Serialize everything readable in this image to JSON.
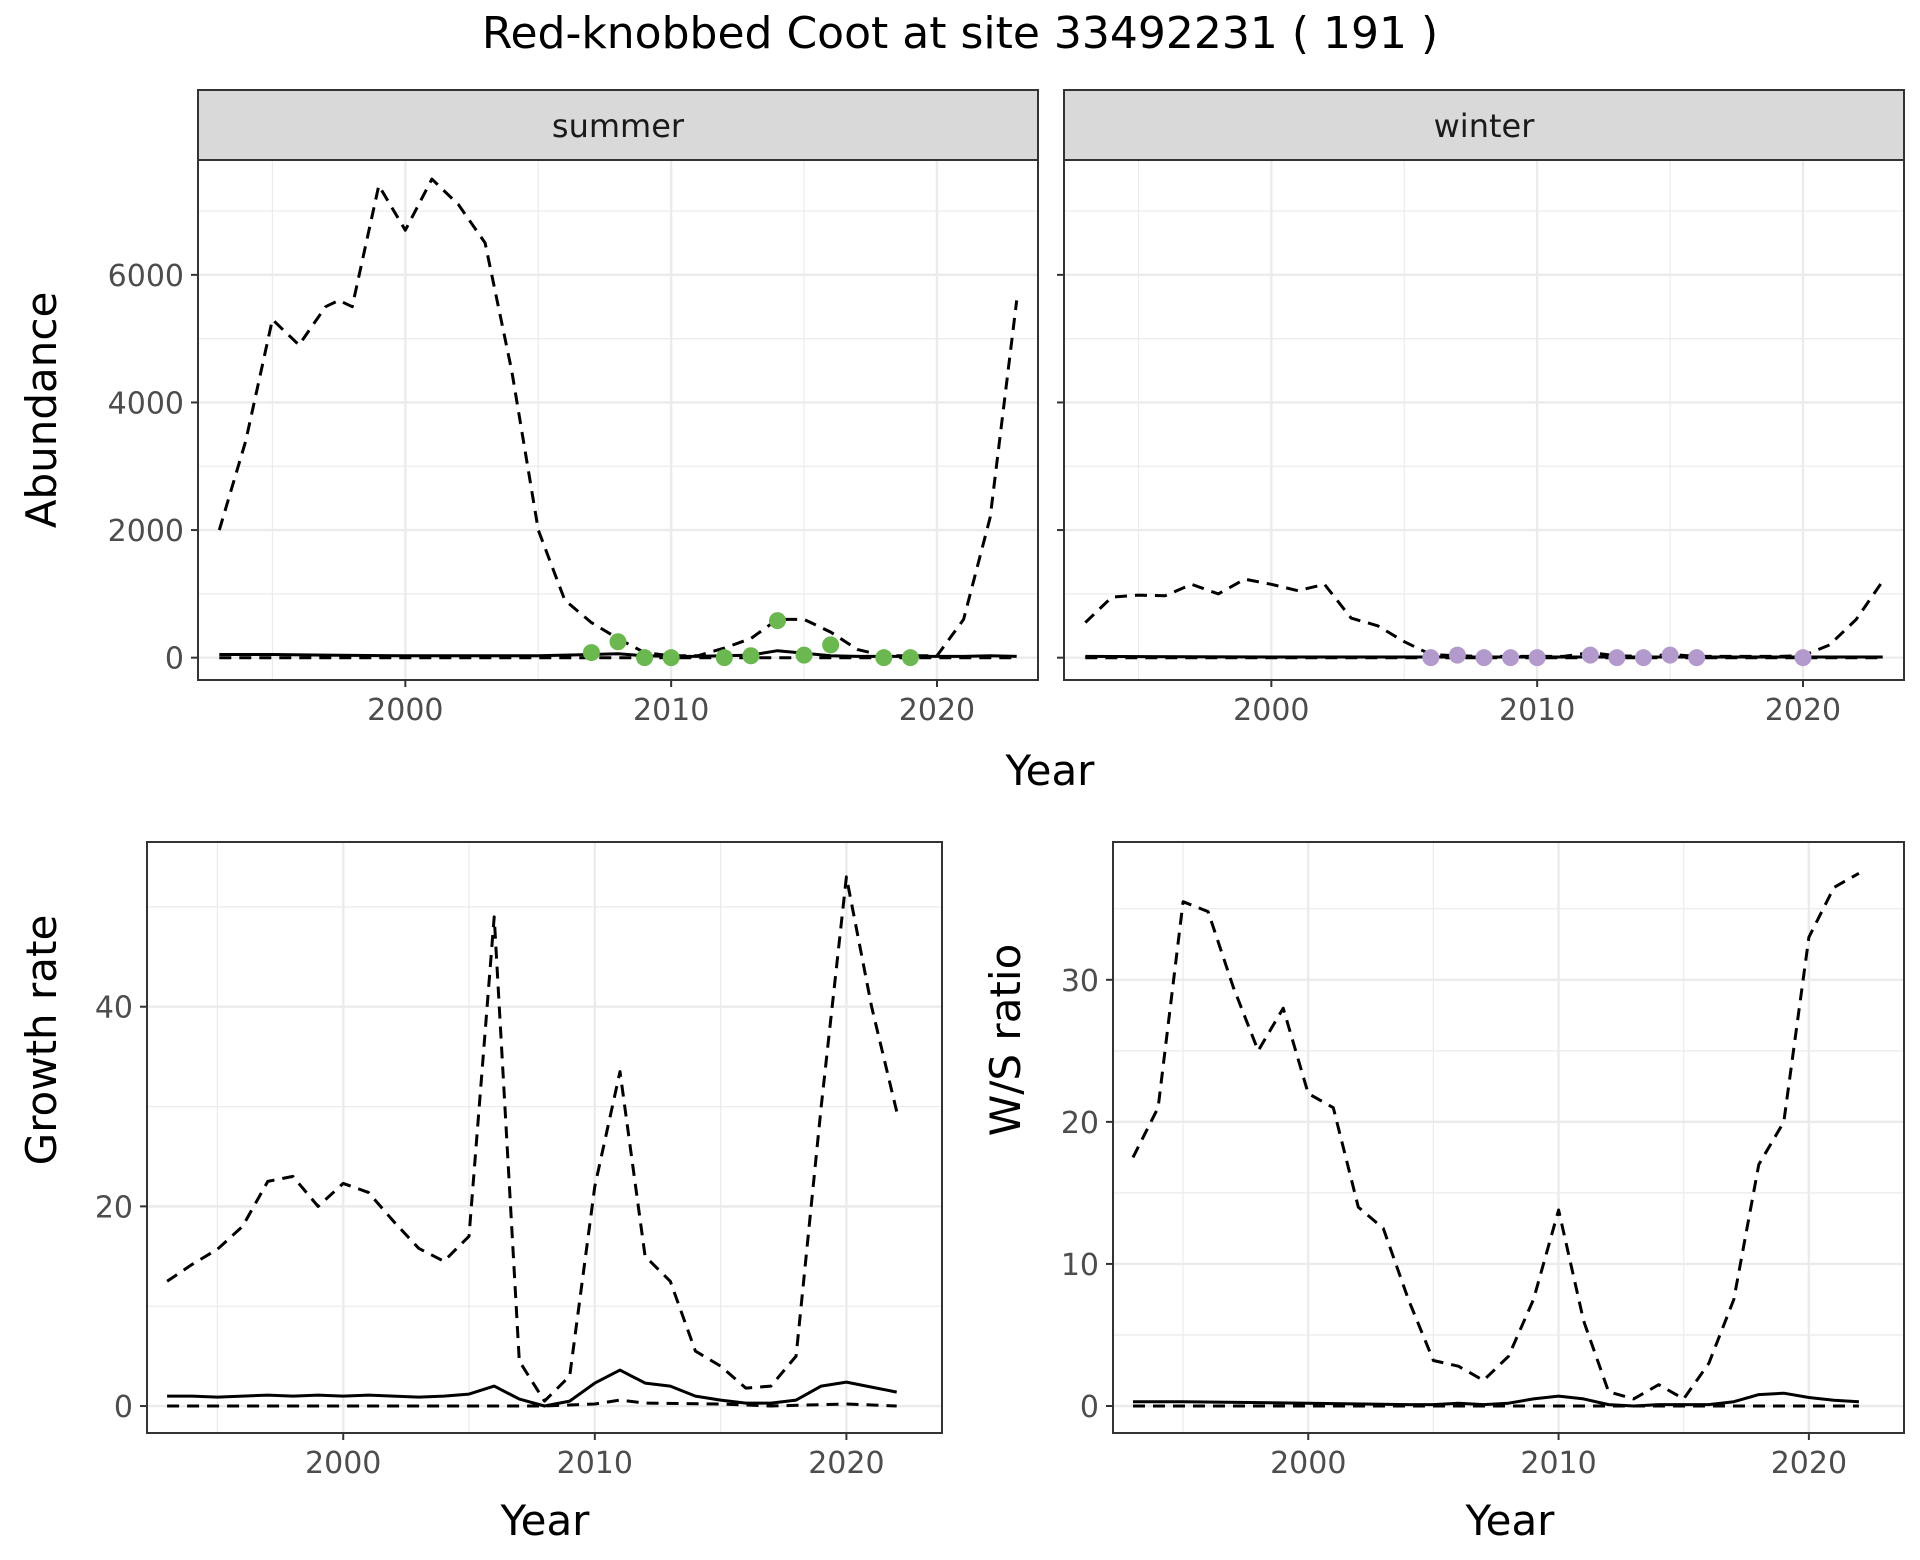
{
  "title": "Red-knobbed Coot at site 33492231 ( 191 )",
  "shared_xlabel": "Year",
  "chart_data": [
    {
      "type": "line",
      "panel": "summer",
      "strip": "summer",
      "ylabel": "Abundance",
      "xlabel": "",
      "xlim": [
        1992.2,
        2023.8
      ],
      "ylim": [
        -350,
        7800
      ],
      "x_ticks": [
        2000,
        2010,
        2020
      ],
      "x_tick_labels": [
        "2000",
        "2010",
        "2020"
      ],
      "y_ticks": [
        0,
        2000,
        4000,
        6000
      ],
      "y_tick_labels": [
        "0",
        "2000",
        "4000",
        "6000"
      ],
      "grid": true,
      "point_color": "#6ab84f",
      "series": [
        {
          "style": "dashed",
          "x": [
            1993,
            1994,
            1995,
            1995.5,
            1996,
            1997,
            1997.5,
            1998,
            1999,
            2000,
            2001,
            2002,
            2003,
            2004,
            2005,
            2006,
            2007,
            2008,
            2009,
            2010,
            2011,
            2012,
            2013,
            2014,
            2015,
            2016,
            2017,
            2018,
            2019,
            2020,
            2021,
            2022,
            2023
          ],
          "values": [
            2000,
            3400,
            5300,
            5100,
            4900,
            5500,
            5600,
            5500,
            7400,
            6700,
            7500,
            7100,
            6500,
            4500,
            2000,
            900,
            550,
            300,
            80,
            30,
            30,
            150,
            300,
            600,
            600,
            400,
            130,
            30,
            30,
            30,
            600,
            2200,
            5600
          ]
        },
        {
          "style": "dashed",
          "x": [
            1993,
            1995,
            2000,
            2005,
            2010,
            2015,
            2020,
            2023
          ],
          "values": [
            0,
            0,
            0,
            0,
            0,
            0,
            0,
            0
          ]
        },
        {
          "style": "solid",
          "x": [
            1993,
            1995,
            1997,
            2000,
            2005,
            2007,
            2008,
            2009,
            2010,
            2011,
            2012,
            2013,
            2014,
            2015,
            2016,
            2017,
            2018,
            2019,
            2020,
            2021,
            2022,
            2023
          ],
          "values": [
            50,
            50,
            40,
            30,
            30,
            50,
            60,
            30,
            20,
            20,
            30,
            40,
            110,
            70,
            30,
            20,
            20,
            20,
            20,
            20,
            30,
            20
          ]
        },
        {
          "style": "points",
          "x": [
            2007,
            2008,
            2009,
            2010,
            2012,
            2013,
            2014,
            2015,
            2016,
            2018,
            2019
          ],
          "values": [
            80,
            250,
            0,
            0,
            0,
            30,
            580,
            40,
            200,
            0,
            0
          ]
        }
      ]
    },
    {
      "type": "line",
      "panel": "winter",
      "strip": "winter",
      "xlim": [
        1992.2,
        2023.8
      ],
      "ylim": [
        -350,
        7800
      ],
      "x_ticks": [
        2000,
        2010,
        2020
      ],
      "x_tick_labels": [
        "2000",
        "2010",
        "2020"
      ],
      "grid": true,
      "point_color": "#b39acc",
      "series": [
        {
          "style": "dashed",
          "x": [
            1993,
            1994,
            1995,
            1996,
            1997,
            1998,
            1999,
            2000,
            2001,
            2002,
            2003,
            2004,
            2005,
            2006,
            2007,
            2008,
            2009,
            2010,
            2011,
            2012,
            2013,
            2014,
            2015,
            2016,
            2017,
            2018,
            2019,
            2020,
            2021,
            2022,
            2023
          ],
          "values": [
            550,
            950,
            980,
            970,
            1150,
            1000,
            1230,
            1150,
            1050,
            1150,
            620,
            500,
            250,
            50,
            30,
            20,
            20,
            20,
            20,
            80,
            30,
            20,
            50,
            20,
            20,
            20,
            20,
            30,
            200,
            600,
            1200
          ]
        },
        {
          "style": "dashed",
          "x": [
            1993,
            2000,
            2010,
            2020,
            2023
          ],
          "values": [
            0,
            0,
            0,
            0,
            0
          ]
        },
        {
          "style": "solid",
          "x": [
            1993,
            2000,
            2005,
            2010,
            2015,
            2020,
            2023
          ],
          "values": [
            20,
            10,
            10,
            10,
            10,
            10,
            10
          ]
        },
        {
          "style": "points",
          "x": [
            2006,
            2007,
            2008,
            2009,
            2010,
            2012,
            2013,
            2014,
            2015,
            2016,
            2020
          ],
          "values": [
            0,
            40,
            0,
            0,
            0,
            40,
            0,
            0,
            40,
            0,
            0
          ]
        }
      ]
    },
    {
      "type": "line",
      "panel": "growth",
      "ylabel": "Growth rate",
      "xlabel": "Year",
      "xlim": [
        1992.2,
        2023.8
      ],
      "ylim": [
        -2.7,
        56.5
      ],
      "x_ticks": [
        2000,
        2010,
        2020
      ],
      "x_tick_labels": [
        "2000",
        "2010",
        "2020"
      ],
      "y_ticks": [
        0,
        20,
        40
      ],
      "y_tick_labels": [
        "0",
        "20",
        "40"
      ],
      "grid": true,
      "series": [
        {
          "style": "dashed",
          "x": [
            1993,
            1994,
            1995,
            1996,
            1997,
            1998,
            1999,
            2000,
            2001,
            2002,
            2003,
            2004,
            2005,
            2006,
            2007,
            2008,
            2009,
            2010,
            2011,
            2012,
            2013,
            2014,
            2015,
            2016,
            2017,
            2018,
            2019,
            2020,
            2021,
            2022
          ],
          "values": [
            12.5,
            14.2,
            15.7,
            18,
            22.5,
            23,
            20,
            22.3,
            21.4,
            18.5,
            15.8,
            14.5,
            17,
            49,
            4.5,
            0.5,
            3,
            22,
            33.5,
            15,
            12.5,
            5.5,
            4,
            1.8,
            2,
            5,
            30,
            53,
            40,
            29.5
          ]
        },
        {
          "style": "dashed",
          "x": [
            1993,
            1995,
            2000,
            2005,
            2008,
            2010,
            2011,
            2012,
            2015,
            2017,
            2020,
            2022
          ],
          "values": [
            0,
            0,
            0,
            0,
            0,
            0.2,
            0.6,
            0.3,
            0.2,
            0,
            0.2,
            0
          ]
        },
        {
          "style": "solid",
          "x": [
            1993,
            1994,
            1995,
            1996,
            1997,
            1998,
            1999,
            2000,
            2001,
            2002,
            2003,
            2004,
            2005,
            2006,
            2007,
            2008,
            2009,
            2010,
            2011,
            2012,
            2013,
            2014,
            2015,
            2016,
            2017,
            2018,
            2019,
            2020,
            2021,
            2022
          ],
          "values": [
            1,
            1,
            0.9,
            1,
            1.1,
            1,
            1.1,
            1,
            1.1,
            1,
            0.9,
            1,
            1.2,
            2,
            0.7,
            0,
            0.5,
            2.3,
            3.6,
            2.3,
            2,
            1,
            0.6,
            0.3,
            0.3,
            0.6,
            2,
            2.4,
            1.9,
            1.4
          ]
        }
      ]
    },
    {
      "type": "line",
      "panel": "ws",
      "ylabel": "W/S ratio",
      "xlabel": "Year",
      "xlim": [
        1992.2,
        2023.8
      ],
      "ylim": [
        -1.9,
        39.7
      ],
      "x_ticks": [
        2000,
        2010,
        2020
      ],
      "x_tick_labels": [
        "2000",
        "2010",
        "2020"
      ],
      "y_ticks": [
        0,
        10,
        20,
        30
      ],
      "y_tick_labels": [
        "0",
        "10",
        "20",
        "30"
      ],
      "grid": true,
      "series": [
        {
          "style": "dashed",
          "x": [
            1993,
            1994,
            1995,
            1996,
            1997,
            1998,
            1999,
            2000,
            2001,
            2002,
            2003,
            2004,
            2005,
            2006,
            2007,
            2008,
            2009,
            2010,
            2011,
            2012,
            2013,
            2014,
            2015,
            2016,
            2017,
            2018,
            2019,
            2020,
            2021,
            2022
          ],
          "values": [
            17.5,
            21,
            35.5,
            34.8,
            29.5,
            25,
            28,
            22,
            21,
            14,
            12.5,
            7.5,
            3.2,
            2.8,
            1.8,
            3.5,
            7.5,
            13.8,
            6,
            1,
            0.5,
            1.5,
            0.5,
            3,
            7.5,
            17,
            20,
            33,
            36.5,
            37.5
          ]
        },
        {
          "style": "dashed",
          "x": [
            1993,
            2000,
            2005,
            2010,
            2015,
            2020,
            2022
          ],
          "values": [
            0,
            0,
            0,
            0,
            0,
            0,
            0
          ]
        },
        {
          "style": "solid",
          "x": [
            1993,
            1995,
            2000,
            2004,
            2005,
            2006,
            2007,
            2008,
            2009,
            2010,
            2011,
            2012,
            2013,
            2014,
            2015,
            2016,
            2017,
            2018,
            2019,
            2020,
            2021,
            2022
          ],
          "values": [
            0.3,
            0.3,
            0.2,
            0.1,
            0.1,
            0.2,
            0.1,
            0.2,
            0.5,
            0.7,
            0.5,
            0.1,
            0,
            0.1,
            0.1,
            0.1,
            0.3,
            0.8,
            0.9,
            0.6,
            0.4,
            0.3
          ]
        }
      ]
    }
  ]
}
